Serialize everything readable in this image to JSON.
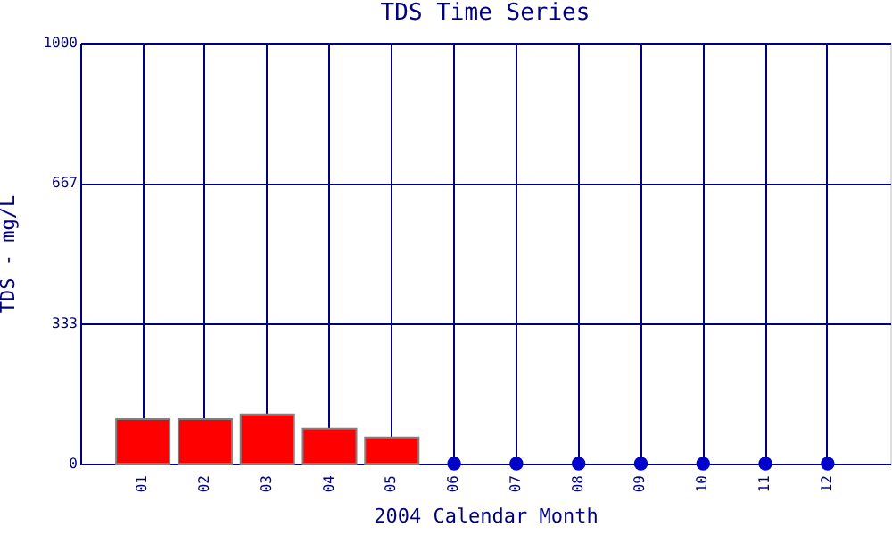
{
  "chart_data": {
    "type": "bar",
    "title": "TDS Time Series",
    "xlabel": "2004 Calendar Month",
    "ylabel": "TDS - mg/L",
    "categories": [
      "01",
      "02",
      "03",
      "04",
      "05",
      "06",
      "07",
      "08",
      "09",
      "10",
      "11",
      "12"
    ],
    "series": [
      {
        "color": "#ff0000",
        "values": [
          106,
          106,
          117,
          83,
          62,
          null,
          null,
          null,
          null,
          null,
          null,
          null
        ]
      },
      {
        "type": "scatter",
        "color": "#0000cc",
        "x": [
          "06",
          "07",
          "08",
          "09",
          "10",
          "11",
          "12"
        ],
        "values": [
          0,
          0,
          0,
          0,
          0,
          0,
          0
        ]
      }
    ],
    "ylim": [
      0,
      1000
    ],
    "yticks": [
      0,
      333,
      667,
      1000
    ],
    "grid": true,
    "marker": "circle"
  }
}
